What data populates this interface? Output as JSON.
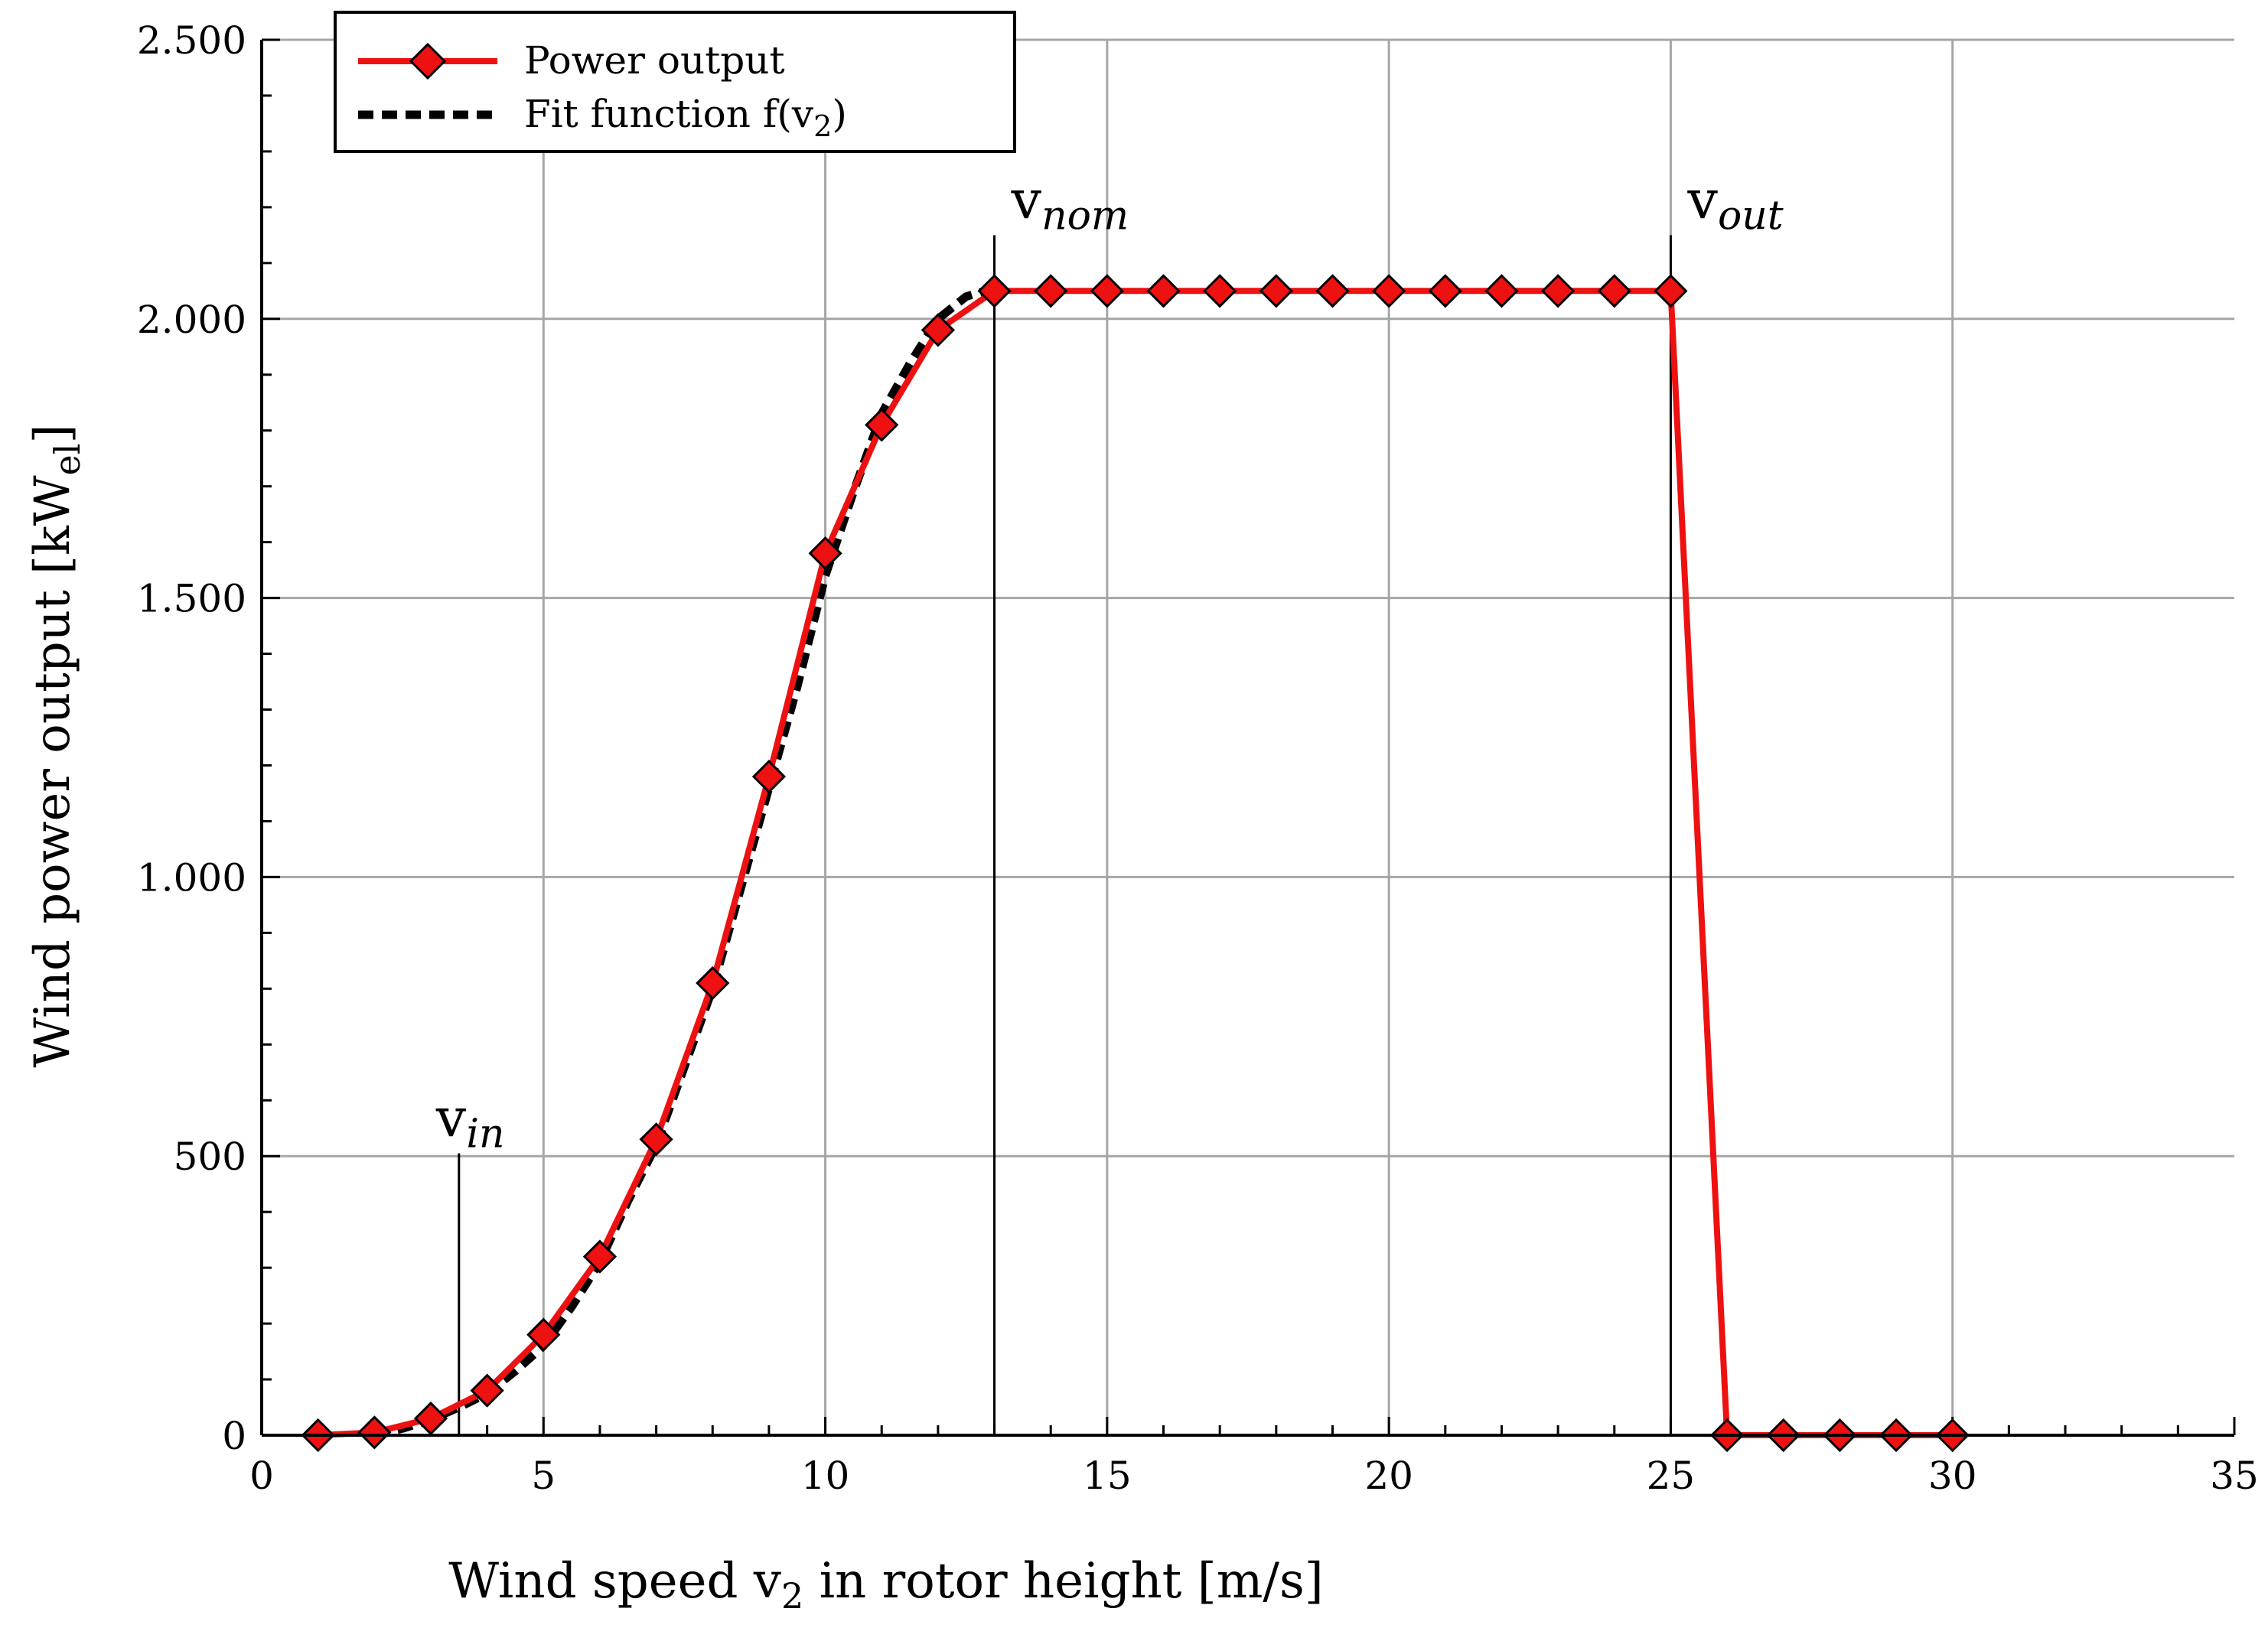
{
  "chart_data": {
    "type": "line",
    "title": "",
    "xlabel": {
      "pre": "Wind speed v",
      "sub": "2",
      "post": " in rotor height [m/s]"
    },
    "ylabel": {
      "pre": "Wind power output [kW",
      "sub": "el",
      "post": "]"
    },
    "xlim": [
      0,
      35
    ],
    "ylim": [
      0,
      2500
    ],
    "x_ticks": [
      0,
      5,
      10,
      15,
      20,
      25,
      30,
      35
    ],
    "x_tick_labels": [
      "0",
      "5",
      "10",
      "15",
      "20",
      "25",
      "30",
      "35"
    ],
    "y_ticks": [
      0,
      500,
      1000,
      1500,
      2000,
      2500
    ],
    "y_tick_labels": [
      "0",
      "500",
      "1.000",
      "1.500",
      "2.000",
      "2.500"
    ],
    "grid": true,
    "legend_position": "top-left",
    "series": [
      {
        "name": "Power output",
        "style": "red solid line with diamond markers",
        "x": [
          1,
          2,
          3,
          4,
          5,
          6,
          7,
          8,
          9,
          10,
          11,
          12,
          13,
          14,
          15,
          16,
          17,
          18,
          19,
          20,
          21,
          22,
          23,
          24,
          25,
          26,
          27,
          28,
          29,
          30
        ],
        "y": [
          0,
          5,
          30,
          80,
          180,
          320,
          530,
          810,
          1180,
          1580,
          1810,
          1980,
          2050,
          2050,
          2050,
          2050,
          2050,
          2050,
          2050,
          2050,
          2050,
          2050,
          2050,
          2050,
          2050,
          0,
          0,
          0,
          0,
          0
        ]
      },
      {
        "name": "Fit function f(v2)",
        "legend_label": {
          "pre": "Fit function f(v",
          "sub": "2",
          "post": ")"
        },
        "style": "black dashed line",
        "x": [
          2,
          2.5,
          3,
          3.5,
          4,
          4.5,
          5,
          5.5,
          6,
          6.5,
          7,
          7.5,
          8,
          8.5,
          9,
          9.5,
          10,
          10.5,
          11,
          11.5,
          12,
          12.5,
          13
        ],
        "y": [
          0,
          12,
          28,
          50,
          75,
          115,
          160,
          230,
          310,
          420,
          520,
          660,
          800,
          980,
          1160,
          1340,
          1540,
          1690,
          1830,
          1920,
          2000,
          2040,
          2055
        ]
      }
    ],
    "annotations": [
      {
        "base": "v",
        "sub": "in",
        "x": 3.5,
        "line_top": 505
      },
      {
        "base": "v",
        "sub": "nom",
        "x": 13,
        "line_top": 2150
      },
      {
        "base": "v",
        "sub": "out",
        "x": 25,
        "line_top": 2150
      }
    ],
    "colors": {
      "power": "#ee1111",
      "fit": "#000000",
      "grid": "#a6a6a6"
    }
  }
}
